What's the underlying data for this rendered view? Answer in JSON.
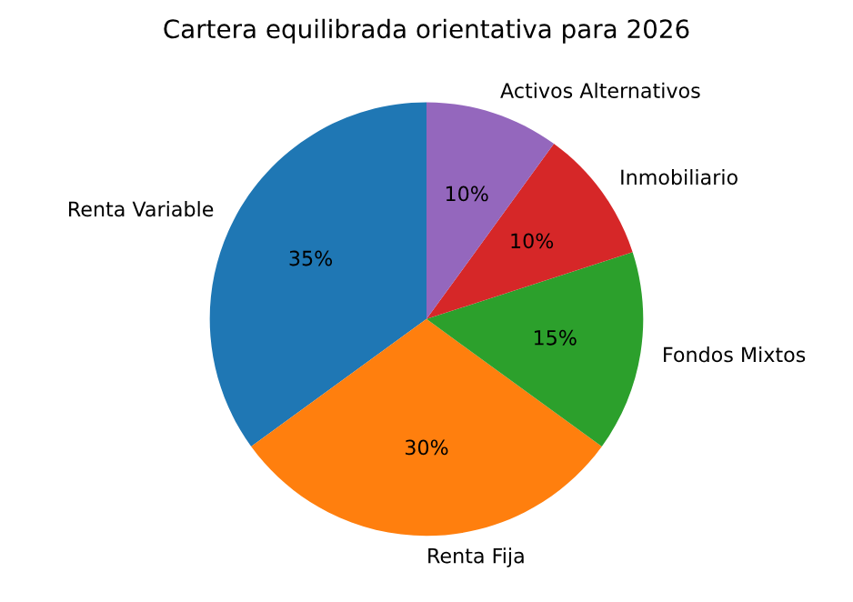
{
  "chart_data": {
    "type": "pie",
    "title": "Cartera equilibrada orientativa para 2026",
    "categories": [
      "Renta Variable",
      "Renta Fija",
      "Fondos Mixtos",
      "Inmobiliario",
      "Activos Alternativos"
    ],
    "values": [
      35,
      30,
      15,
      10,
      10
    ],
    "colors": [
      "#1f77b4",
      "#ff7f0e",
      "#2ca02c",
      "#d62728",
      "#9467bd"
    ],
    "value_labels": [
      "35%",
      "30%",
      "15%",
      "10%",
      "10%"
    ]
  }
}
